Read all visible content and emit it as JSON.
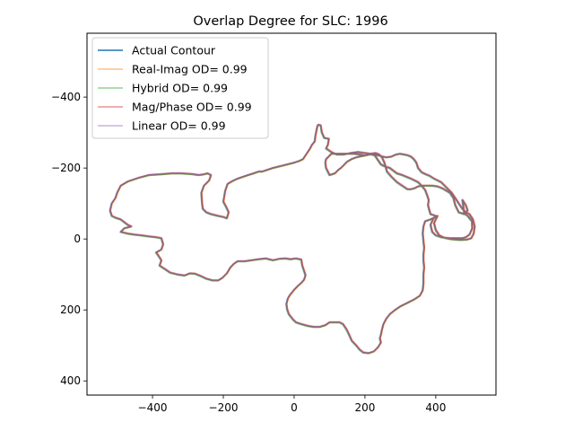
{
  "chart_data": {
    "type": "line",
    "title": "Overlap Degree for SLC: 1996",
    "xlabel": "",
    "ylabel": "",
    "xlim": [
      -585,
      570
    ],
    "ylim": [
      440,
      -580
    ],
    "y_inverted": true,
    "x_ticks": [
      -400,
      -200,
      0,
      200,
      400
    ],
    "x_tick_labels": [
      "−400",
      "−200",
      "0",
      "200",
      "400"
    ],
    "y_ticks": [
      -400,
      -200,
      0,
      200,
      400
    ],
    "y_tick_labels": [
      "−400",
      "−200",
      "0",
      "200",
      "400"
    ],
    "grid": false,
    "legend_position": "top-left",
    "series": [
      {
        "name": "Actual Contour",
        "color": "#1f77b4",
        "alpha": 1.0
      },
      {
        "name": "Real-Imag OD= 0.99",
        "color": "#ff7f0e",
        "alpha": 0.5
      },
      {
        "name": "Hybrid OD= 0.99",
        "color": "#2ca02c",
        "alpha": 0.5
      },
      {
        "name": "Mag/Phase OD= 0.99",
        "color": "#d62728",
        "alpha": 0.5
      },
      {
        "name": "Linear OD= 0.99",
        "color": "#9467bd",
        "alpha": 0.5
      }
    ],
    "contour": [
      [
        67,
        -322
      ],
      [
        75,
        -320
      ],
      [
        78,
        -300
      ],
      [
        85,
        -285
      ],
      [
        98,
        -282
      ],
      [
        95,
        -265
      ],
      [
        90,
        -255
      ],
      [
        105,
        -245
      ],
      [
        120,
        -238
      ],
      [
        140,
        -238
      ],
      [
        160,
        -242
      ],
      [
        180,
        -245
      ],
      [
        200,
        -242
      ],
      [
        215,
        -240
      ],
      [
        228,
        -235
      ],
      [
        235,
        -225
      ],
      [
        245,
        -210
      ],
      [
        255,
        -205
      ],
      [
        270,
        -200
      ],
      [
        290,
        -185
      ],
      [
        305,
        -180
      ],
      [
        330,
        -170
      ],
      [
        350,
        -160
      ],
      [
        360,
        -150
      ],
      [
        370,
        -138
      ],
      [
        375,
        -125
      ],
      [
        380,
        -110
      ],
      [
        378,
        -95
      ],
      [
        382,
        -80
      ],
      [
        385,
        -70
      ],
      [
        400,
        -65
      ],
      [
        392,
        -55
      ],
      [
        385,
        -40
      ],
      [
        390,
        -20
      ],
      [
        400,
        -10
      ],
      [
        415,
        -5
      ],
      [
        430,
        -3
      ],
      [
        440,
        -2
      ],
      [
        450,
        -2
      ],
      [
        465,
        -2
      ],
      [
        475,
        -2
      ],
      [
        485,
        -5
      ],
      [
        495,
        -12
      ],
      [
        503,
        -30
      ],
      [
        502,
        -50
      ],
      [
        490,
        -65
      ],
      [
        480,
        -72
      ],
      [
        478,
        -90
      ],
      [
        475,
        -110
      ],
      [
        485,
        -95
      ],
      [
        490,
        -80
      ],
      [
        480,
        -70
      ],
      [
        465,
        -75
      ],
      [
        455,
        -95
      ],
      [
        450,
        -115
      ],
      [
        440,
        -130
      ],
      [
        420,
        -142
      ],
      [
        405,
        -148
      ],
      [
        390,
        -150
      ],
      [
        375,
        -150
      ],
      [
        360,
        -150
      ],
      [
        350,
        -148
      ],
      [
        340,
        -143
      ],
      [
        330,
        -140
      ],
      [
        320,
        -140
      ],
      [
        305,
        -150
      ],
      [
        290,
        -160
      ],
      [
        275,
        -175
      ],
      [
        262,
        -190
      ],
      [
        255,
        -215
      ],
      [
        248,
        -230
      ],
      [
        240,
        -238
      ],
      [
        230,
        -242
      ],
      [
        215,
        -240
      ],
      [
        200,
        -235
      ],
      [
        188,
        -233
      ],
      [
        175,
        -230
      ],
      [
        162,
        -225
      ],
      [
        150,
        -218
      ],
      [
        140,
        -208
      ],
      [
        132,
        -200
      ],
      [
        125,
        -195
      ],
      [
        115,
        -185
      ],
      [
        100,
        -180
      ],
      [
        90,
        -200
      ],
      [
        88,
        -215
      ],
      [
        90,
        -225
      ],
      [
        95,
        -230
      ],
      [
        105,
        -240
      ],
      [
        120,
        -240
      ],
      [
        135,
        -240
      ],
      [
        150,
        -240
      ],
      [
        170,
        -240
      ],
      [
        185,
        -238
      ],
      [
        200,
        -235
      ],
      [
        212,
        -238
      ],
      [
        225,
        -238
      ],
      [
        240,
        -235
      ],
      [
        250,
        -232
      ],
      [
        260,
        -230
      ],
      [
        275,
        -232
      ],
      [
        285,
        -237
      ],
      [
        298,
        -240
      ],
      [
        310,
        -238
      ],
      [
        320,
        -236
      ],
      [
        330,
        -232
      ],
      [
        338,
        -225
      ],
      [
        345,
        -215
      ],
      [
        350,
        -200
      ],
      [
        360,
        -188
      ],
      [
        372,
        -182
      ],
      [
        382,
        -178
      ],
      [
        395,
        -170
      ],
      [
        405,
        -165
      ],
      [
        415,
        -160
      ],
      [
        425,
        -150
      ],
      [
        435,
        -140
      ],
      [
        445,
        -130
      ],
      [
        455,
        -115
      ],
      [
        465,
        -100
      ],
      [
        475,
        -85
      ],
      [
        485,
        -75
      ],
      [
        495,
        -70
      ],
      [
        505,
        -55
      ],
      [
        510,
        -35
      ],
      [
        507,
        -15
      ],
      [
        500,
        -2
      ],
      [
        488,
        2
      ],
      [
        470,
        3
      ],
      [
        455,
        2
      ],
      [
        440,
        0
      ],
      [
        425,
        -3
      ],
      [
        410,
        -10
      ],
      [
        400,
        -25
      ],
      [
        395,
        -45
      ],
      [
        400,
        -55
      ],
      [
        405,
        -65
      ],
      [
        395,
        -60
      ],
      [
        385,
        -55
      ],
      [
        370,
        -50
      ],
      [
        365,
        -35
      ],
      [
        363,
        -15
      ],
      [
        365,
        5
      ],
      [
        367,
        25
      ],
      [
        365,
        45
      ],
      [
        365,
        60
      ],
      [
        367,
        80
      ],
      [
        365,
        100
      ],
      [
        365,
        125
      ],
      [
        363,
        145
      ],
      [
        355,
        160
      ],
      [
        340,
        170
      ],
      [
        320,
        180
      ],
      [
        300,
        190
      ],
      [
        285,
        200
      ],
      [
        270,
        212
      ],
      [
        260,
        225
      ],
      [
        252,
        240
      ],
      [
        248,
        255
      ],
      [
        245,
        270
      ],
      [
        242,
        280
      ],
      [
        245,
        292
      ],
      [
        237,
        305
      ],
      [
        225,
        317
      ],
      [
        210,
        322
      ],
      [
        195,
        320
      ],
      [
        185,
        312
      ],
      [
        175,
        300
      ],
      [
        163,
        287
      ],
      [
        155,
        270
      ],
      [
        148,
        255
      ],
      [
        138,
        240
      ],
      [
        128,
        235
      ],
      [
        115,
        235
      ],
      [
        100,
        235
      ],
      [
        88,
        243
      ],
      [
        72,
        248
      ],
      [
        55,
        248
      ],
      [
        38,
        245
      ],
      [
        20,
        240
      ],
      [
        5,
        235
      ],
      [
        -5,
        225
      ],
      [
        -15,
        212
      ],
      [
        -20,
        198
      ],
      [
        -22,
        183
      ],
      [
        -18,
        168
      ],
      [
        -12,
        158
      ],
      [
        0,
        143
      ],
      [
        10,
        133
      ],
      [
        20,
        124
      ],
      [
        28,
        115
      ],
      [
        32,
        102
      ],
      [
        28,
        90
      ],
      [
        23,
        75
      ],
      [
        20,
        58
      ],
      [
        5,
        55
      ],
      [
        -10,
        57
      ],
      [
        -25,
        55
      ],
      [
        -42,
        56
      ],
      [
        -60,
        60
      ],
      [
        -80,
        55
      ],
      [
        -100,
        57
      ],
      [
        -120,
        60
      ],
      [
        -140,
        63
      ],
      [
        -160,
        63
      ],
      [
        -170,
        70
      ],
      [
        -180,
        80
      ],
      [
        -190,
        97
      ],
      [
        -203,
        110
      ],
      [
        -215,
        117
      ],
      [
        -230,
        117
      ],
      [
        -248,
        112
      ],
      [
        -263,
        105
      ],
      [
        -280,
        98
      ],
      [
        -295,
        97
      ],
      [
        -310,
        103
      ],
      [
        -330,
        100
      ],
      [
        -350,
        95
      ],
      [
        -365,
        85
      ],
      [
        -380,
        75
      ],
      [
        -375,
        60
      ],
      [
        -385,
        45
      ],
      [
        -390,
        38
      ],
      [
        -375,
        30
      ],
      [
        -370,
        15
      ],
      [
        -375,
        -2
      ],
      [
        -390,
        -5
      ],
      [
        -410,
        -7
      ],
      [
        -430,
        -10
      ],
      [
        -450,
        -12
      ],
      [
        -470,
        -15
      ],
      [
        -490,
        -20
      ],
      [
        -480,
        -30
      ],
      [
        -460,
        -35
      ],
      [
        -470,
        -40
      ],
      [
        -490,
        -55
      ],
      [
        -505,
        -60
      ],
      [
        -515,
        -65
      ],
      [
        -520,
        -80
      ],
      [
        -515,
        -100
      ],
      [
        -505,
        -115
      ],
      [
        -500,
        -130
      ],
      [
        -490,
        -150
      ],
      [
        -470,
        -162
      ],
      [
        -440,
        -172
      ],
      [
        -410,
        -180
      ],
      [
        -380,
        -182
      ],
      [
        -345,
        -185
      ],
      [
        -320,
        -185
      ],
      [
        -290,
        -183
      ],
      [
        -270,
        -180
      ],
      [
        -255,
        -182
      ],
      [
        -245,
        -185
      ],
      [
        -235,
        -180
      ],
      [
        -240,
        -165
      ],
      [
        -255,
        -150
      ],
      [
        -262,
        -130
      ],
      [
        -260,
        -100
      ],
      [
        -258,
        -85
      ],
      [
        -248,
        -75
      ],
      [
        -235,
        -70
      ],
      [
        -215,
        -65
      ],
      [
        -200,
        -62
      ],
      [
        -190,
        -58
      ],
      [
        -185,
        -75
      ],
      [
        -192,
        -90
      ],
      [
        -200,
        -105
      ],
      [
        -195,
        -135
      ],
      [
        -188,
        -155
      ],
      [
        -175,
        -163
      ],
      [
        -160,
        -170
      ],
      [
        -145,
        -175
      ],
      [
        -130,
        -180
      ],
      [
        -115,
        -185
      ],
      [
        -100,
        -190
      ],
      [
        -90,
        -190
      ],
      [
        -75,
        -195
      ],
      [
        -60,
        -200
      ],
      [
        -40,
        -205
      ],
      [
        -20,
        -210
      ],
      [
        0,
        -215
      ],
      [
        15,
        -220
      ],
      [
        25,
        -225
      ],
      [
        35,
        -240
      ],
      [
        45,
        -255
      ],
      [
        50,
        -265
      ],
      [
        58,
        -275
      ],
      [
        60,
        -290
      ],
      [
        63,
        -305
      ],
      [
        65,
        -315
      ],
      [
        67,
        -322
      ]
    ]
  }
}
